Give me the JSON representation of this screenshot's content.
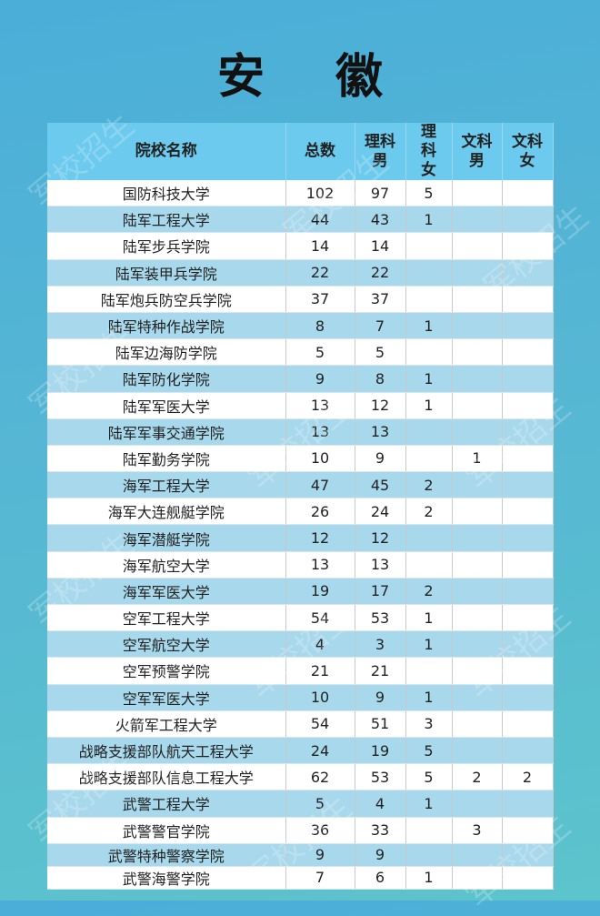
{
  "title": "安 徽",
  "watermark": "军校招生",
  "headers": [
    "院校名称",
    "总数",
    "理科男",
    "理科女",
    "文科男",
    "文科女"
  ],
  "rows": [
    [
      "国防科技大学",
      "102",
      "97",
      "5",
      "",
      ""
    ],
    [
      "陆军工程大学",
      "44",
      "43",
      "1",
      "",
      ""
    ],
    [
      "陆军步兵学院",
      "14",
      "14",
      "",
      "",
      ""
    ],
    [
      "陆军装甲兵学院",
      "22",
      "22",
      "",
      "",
      ""
    ],
    [
      "陆军炮兵防空兵学院",
      "37",
      "37",
      "",
      "",
      ""
    ],
    [
      "陆军特种作战学院",
      "8",
      "7",
      "1",
      "",
      ""
    ],
    [
      "陆军边海防学院",
      "5",
      "5",
      "",
      "",
      ""
    ],
    [
      "陆军防化学院",
      "9",
      "8",
      "1",
      "",
      ""
    ],
    [
      "陆军军医大学",
      "13",
      "12",
      "1",
      "",
      ""
    ],
    [
      "陆军军事交通学院",
      "13",
      "13",
      "",
      "",
      ""
    ],
    [
      "陆军勤务学院",
      "10",
      "9",
      "",
      "1",
      ""
    ],
    [
      "海军工程大学",
      "47",
      "45",
      "2",
      "",
      ""
    ],
    [
      "海军大连舰艇学院",
      "26",
      "24",
      "2",
      "",
      ""
    ],
    [
      "海军潜艇学院",
      "12",
      "12",
      "",
      "",
      ""
    ],
    [
      "海军航空大学",
      "13",
      "13",
      "",
      "",
      ""
    ],
    [
      "海军军医大学",
      "19",
      "17",
      "2",
      "",
      ""
    ],
    [
      "空军工程大学",
      "54",
      "53",
      "1",
      "",
      ""
    ],
    [
      "空军航空大学",
      "4",
      "3",
      "1",
      "",
      ""
    ],
    [
      "空军预警学院",
      "21",
      "21",
      "",
      "",
      ""
    ],
    [
      "空军军医大学",
      "10",
      "9",
      "1",
      "",
      ""
    ],
    [
      "火箭军工程大学",
      "54",
      "51",
      "3",
      "",
      ""
    ],
    [
      "战略支援部队航天工程大学",
      "24",
      "19",
      "5",
      "",
      ""
    ],
    [
      "战略支援部队信息工程大学",
      "62",
      "53",
      "5",
      "2",
      "2"
    ],
    [
      "武警工程大学",
      "5",
      "4",
      "1",
      "",
      ""
    ],
    [
      "武警警官学院",
      "36",
      "33",
      "",
      "3",
      ""
    ],
    [
      "武警特种警察学院",
      "9",
      "9",
      "",
      "",
      ""
    ],
    [
      "武警海警学院",
      "7",
      "6",
      "1",
      "",
      ""
    ]
  ]
}
